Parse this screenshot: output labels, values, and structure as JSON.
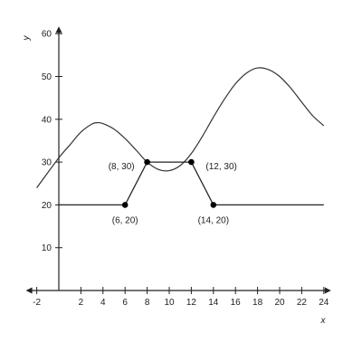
{
  "chart_data": {
    "type": "line",
    "title": "",
    "xlabel": "x",
    "ylabel": "y",
    "xlim": [
      -2,
      24
    ],
    "ylim": [
      0,
      60
    ],
    "x_ticks": [
      -2,
      2,
      4,
      6,
      8,
      10,
      12,
      14,
      16,
      18,
      20,
      22,
      24
    ],
    "y_ticks": [
      10,
      20,
      30,
      40,
      50,
      60
    ],
    "grid": false,
    "series": [
      {
        "kind": "smooth",
        "x": [
          -2,
          0,
          1,
          2,
          3,
          3.5,
          4,
          5,
          6,
          7,
          8,
          9,
          10,
          11,
          12,
          13,
          14,
          15,
          16,
          17,
          18,
          19,
          20,
          21,
          22,
          23,
          24
        ],
        "y": [
          24,
          31,
          34,
          37,
          38.9,
          39.2,
          39,
          37.7,
          35.5,
          32.8,
          30,
          28.3,
          28,
          29.2,
          32,
          36,
          40.5,
          44.7,
          48.3,
          50.8,
          52,
          51.6,
          50,
          47.3,
          44,
          40.8,
          38.5
        ]
      },
      {
        "kind": "piecewise",
        "x": [
          0,
          6,
          8,
          12,
          14,
          24
        ],
        "y": [
          20,
          20,
          30,
          30,
          20,
          20
        ]
      }
    ],
    "points": [
      {
        "x": 6,
        "y": 20,
        "label": "(6, 20)",
        "label_pos": "below"
      },
      {
        "x": 8,
        "y": 30,
        "label": "(8, 30)",
        "label_pos": "left"
      },
      {
        "x": 12,
        "y": 30,
        "label": "(12, 30)",
        "label_pos": "right"
      },
      {
        "x": 14,
        "y": 20,
        "label": "(14, 20)",
        "label_pos": "below"
      }
    ]
  }
}
